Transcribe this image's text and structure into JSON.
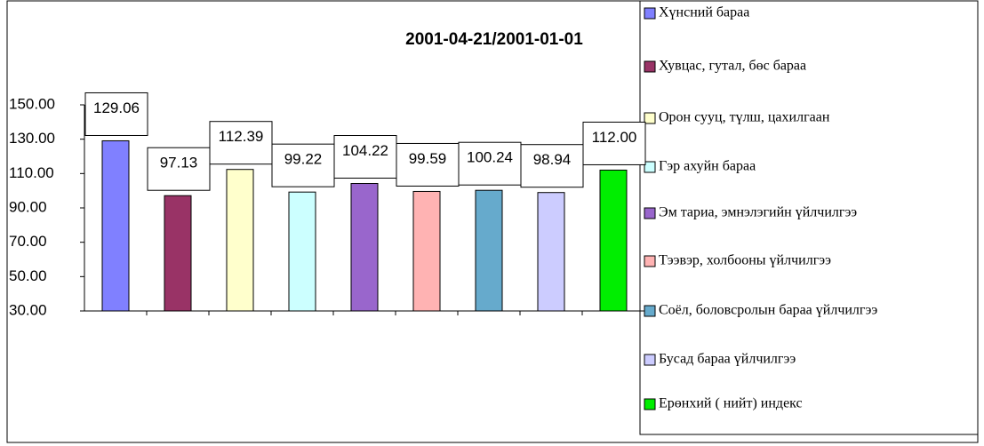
{
  "chart_data": {
    "type": "bar",
    "title": "2001-04-21/2001-01-01",
    "series": [
      {
        "name": "Хүнсний бараа",
        "color": "#8080ff",
        "values": [
          129.06
        ],
        "value_labels": [
          "129.06"
        ]
      },
      {
        "name": "Хувцас, гутал, бөс бараа",
        "color": "#993366",
        "values": [
          97.13
        ],
        "value_labels": [
          "97.13"
        ]
      },
      {
        "name": "Орон сууц, түлш, цахилгаан",
        "color": "#ffffcc",
        "values": [
          112.39
        ],
        "value_labels": [
          "112.39"
        ]
      },
      {
        "name": "Гэр ахуйн бараа",
        "color": "#ccffff",
        "values": [
          99.22
        ],
        "value_labels": [
          "99.22"
        ]
      },
      {
        "name": "Эм тариа, эмнэлэгийн үйлчилгээ",
        "color": "#9966cc",
        "values": [
          104.22
        ],
        "value_labels": [
          "104.22"
        ]
      },
      {
        "name": "Тээвэр, холбооны үйлчилгээ",
        "color": "#ffb3b3",
        "values": [
          99.59
        ],
        "value_labels": [
          "99.59"
        ]
      },
      {
        "name": "Соёл, боловсролын бараа үйлчилгээ",
        "color": "#66aacc",
        "values": [
          100.24
        ],
        "value_labels": [
          "100.24"
        ]
      },
      {
        "name": "Бусад бараа үйлчилгээ",
        "color": "#ccccff",
        "values": [
          98.94
        ],
        "value_labels": [
          "98.94"
        ]
      },
      {
        "name": "Ерөнхий ( нийт) индекс",
        "color": "#00ee00",
        "values": [
          112.0
        ],
        "value_labels": [
          "112.00"
        ]
      }
    ],
    "ylim": [
      30,
      150
    ],
    "yticks": [
      {
        "value": 30,
        "label": "30.00"
      },
      {
        "value": 50,
        "label": "50.00"
      },
      {
        "value": 70,
        "label": "70.00"
      },
      {
        "value": 90,
        "label": "90.00"
      },
      {
        "value": 110,
        "label": "110.00"
      },
      {
        "value": 130,
        "label": "130.00"
      },
      {
        "value": 150,
        "label": "150.00"
      }
    ],
    "legend": "right"
  }
}
